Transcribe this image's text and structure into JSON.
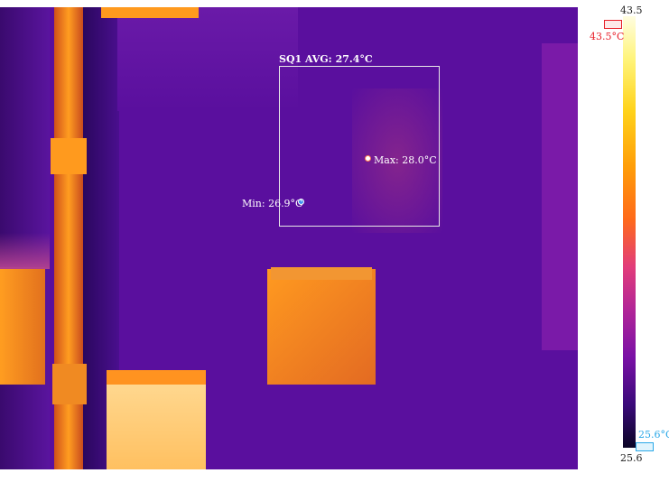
{
  "roi": {
    "label": "SQ1 AVG: 27.4°C"
  },
  "max_point": {
    "label": "Max: 28.0°C"
  },
  "min_point": {
    "label": "Min: 26.9°C"
  },
  "scale": {
    "max_value": "43.5",
    "min_value": "25.6",
    "high_marker_label": "43.5°C",
    "low_marker_label": "25.6°C",
    "high_color": "#e8202a",
    "low_color": "#2aa8e8"
  },
  "palette": {
    "background": "#5a0f9e",
    "warm": "#ff8a1a",
    "cool": "#2a0860"
  }
}
